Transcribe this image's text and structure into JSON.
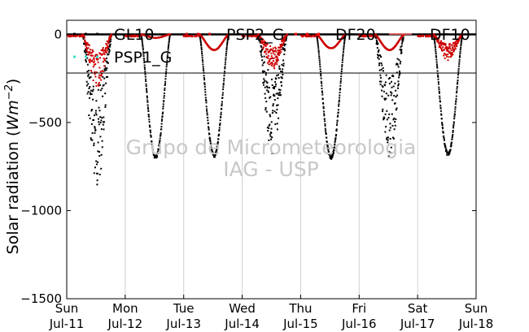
{
  "chart_data": {
    "type": "scatter",
    "title": "",
    "ylabel": "Solar radiation ($Wm^{-2}$)",
    "ylabel_plain": "Solar radiation (",
    "ylabel_unit_base": "Wm",
    "ylabel_unit_exp": "−2",
    "ylabel_close": ")",
    "ylim": [
      -1500,
      80
    ],
    "yticks": [
      0,
      -500,
      -1000,
      -1500
    ],
    "ytick_labels": [
      "0",
      "−500",
      "−1000",
      "−1500"
    ],
    "xlim": [
      0,
      7
    ],
    "xticks": [
      0,
      1,
      2,
      3,
      4,
      5,
      6,
      7
    ],
    "xtick_labels_day": [
      "Sun",
      "Mon",
      "Tue",
      "Wed",
      "Thu",
      "Fri",
      "Sat",
      "Sun"
    ],
    "xtick_labels_date": [
      "Jul-11",
      "Jul-12",
      "Jul-13",
      "Jul-14",
      "Jul-15",
      "Jul-16",
      "Jul-17",
      "Jul-18"
    ],
    "grid": "vertical",
    "legend_placement": "top",
    "watermark": [
      "Grupo de Micrometeorologia",
      "IAG - USP"
    ],
    "series": [
      {
        "name": "GL10",
        "color": "#000000",
        "marker": "dot",
        "days": [
          {
            "day": 0,
            "peak": -870,
            "noisy": true
          },
          {
            "day": 1,
            "peak": -710,
            "noisy": false
          },
          {
            "day": 2,
            "peak": -700,
            "noisy": false
          },
          {
            "day": 3,
            "peak": -680,
            "noisy": true
          },
          {
            "day": 4,
            "peak": -710,
            "noisy": false
          },
          {
            "day": 5,
            "peak": -700,
            "noisy": true
          },
          {
            "day": 6,
            "peak": -690,
            "noisy": false
          }
        ]
      },
      {
        "name": "PSP1_G",
        "color": "#40e0d0",
        "marker": "dot",
        "days": []
      },
      {
        "name": "PSP2_G",
        "color": "#cc0000",
        "marker": "dot",
        "days": [
          {
            "day": 0,
            "peak": -300,
            "noisy": true
          },
          {
            "day": 1,
            "peak": -20,
            "noisy": false
          },
          {
            "day": 2,
            "peak": -90,
            "noisy": false
          },
          {
            "day": 3,
            "peak": -200,
            "noisy": true
          },
          {
            "day": 4,
            "peak": -80,
            "noisy": false
          },
          {
            "day": 5,
            "peak": -90,
            "noisy": false
          },
          {
            "day": 6,
            "peak": -150,
            "noisy": true
          }
        ]
      },
      {
        "name": "DF20",
        "color": "#ff0000",
        "marker": "dot",
        "days": []
      },
      {
        "name": "DF10",
        "color": "#ff6666",
        "marker": "line",
        "days": []
      }
    ],
    "reference_line": {
      "y": 0,
      "color": "#000000"
    }
  },
  "legend": {
    "items": [
      {
        "label": "GL10",
        "color": "#000000",
        "style": "dots"
      },
      {
        "label": "PSP2_G",
        "color": "#cc0000",
        "style": "dots"
      },
      {
        "label": "DF20",
        "color": "#ff0000",
        "style": "dots"
      },
      {
        "label": "DF10",
        "color": "#ff6666",
        "style": "line"
      },
      {
        "label": "PSP1_G",
        "color": "#40e0d0",
        "style": "dots"
      }
    ]
  }
}
